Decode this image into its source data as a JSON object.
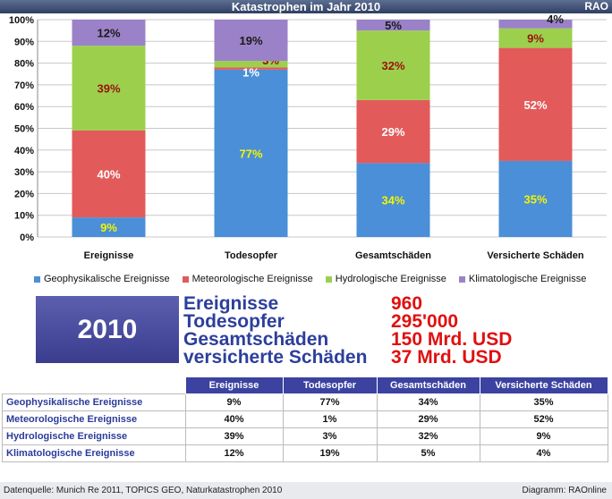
{
  "header": {
    "title": "Katastrophen im Jahr 2010",
    "brand": "RAO"
  },
  "chart_data": {
    "type": "bar",
    "stacked": true,
    "percent": true,
    "categories": [
      "Ereignisse",
      "Todesopfer",
      "Gesamtschäden",
      "Versicherte Schäden"
    ],
    "series": [
      {
        "name": "Geophysikalische Ereignisse",
        "color": "#4a8fd8",
        "values": [
          9,
          77,
          34,
          35
        ],
        "labels": [
          "9%",
          "77%",
          "34%",
          "35%"
        ],
        "label_color": "#f5f500"
      },
      {
        "name": "Meteorologische Ereignisse",
        "color": "#e25a5a",
        "values": [
          40,
          1,
          29,
          52
        ],
        "labels": [
          "40%",
          "1%",
          "29%",
          "52%"
        ],
        "label_color": "#ffffff"
      },
      {
        "name": "Hydrologische Ereignisse",
        "color": "#9cd04c",
        "values": [
          39,
          3,
          32,
          9
        ],
        "labels": [
          "39%",
          "3%",
          "32%",
          "9%"
        ],
        "label_color": "#9a1010"
      },
      {
        "name": "Klimatologische Ereignisse",
        "color": "#9b82c8",
        "values": [
          12,
          19,
          5,
          4
        ],
        "labels": [
          "12%",
          "19%",
          "5%",
          "4%"
        ],
        "label_color": "#1a1a1a"
      }
    ],
    "yticks": [
      "0%",
      "10%",
      "20%",
      "30%",
      "40%",
      "50%",
      "60%",
      "70%",
      "80%",
      "90%",
      "100%"
    ],
    "ylim": [
      0,
      100
    ],
    "legend": "bottom"
  },
  "summary": {
    "year": "2010",
    "rows": [
      {
        "label": "Ereignisse",
        "value": "960"
      },
      {
        "label": "Todesopfer",
        "value": "295'000"
      },
      {
        "label": "Gesamtschäden",
        "value": "150 Mrd. USD"
      },
      {
        "label": "versicherte Schäden",
        "value": "37   Mrd. USD"
      }
    ]
  },
  "table": {
    "columns": [
      "Ereignisse",
      "Todesopfer",
      "Gesamtschäden",
      "Versicherte Schäden"
    ],
    "rows": [
      {
        "label": "Geophysikalische Ereignisse",
        "cells": [
          "9%",
          "77%",
          "34%",
          "35%"
        ]
      },
      {
        "label": "Meteorologische Ereignisse",
        "cells": [
          "40%",
          "1%",
          "29%",
          "52%"
        ]
      },
      {
        "label": "Hydrologische Ereignisse",
        "cells": [
          "39%",
          "3%",
          "32%",
          "9%"
        ]
      },
      {
        "label": "Klimatologische Ereignisse",
        "cells": [
          "12%",
          "19%",
          "5%",
          "4%"
        ]
      }
    ]
  },
  "footer": {
    "source": "Datenquelle: Munich Re 2011, TOPICS GEO, Naturkatastrophen 2010",
    "credit": "Diagramm: RAOnline"
  }
}
